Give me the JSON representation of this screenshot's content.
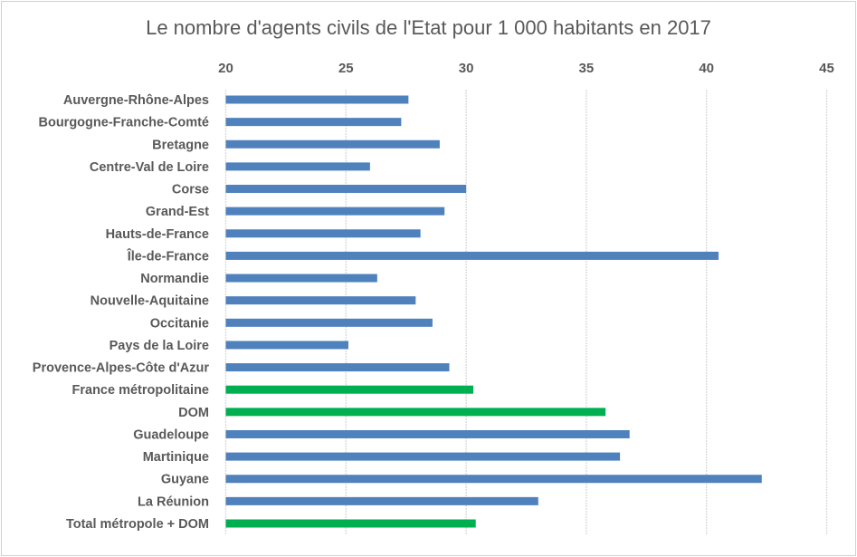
{
  "chart_data": {
    "type": "bar",
    "orientation": "horizontal",
    "title": "Le nombre d'agents civils de l'Etat pour 1 000 habitants en 2017",
    "xlabel": "",
    "ylabel": "",
    "xlim": [
      20,
      45
    ],
    "xticks": [
      "20",
      "25",
      "30",
      "35",
      "40",
      "45"
    ],
    "xtick_values": [
      20,
      25,
      30,
      35,
      40,
      45
    ],
    "axis_position": "top",
    "grid": true,
    "colors": {
      "region": "#4f81bd",
      "aggregate": "#00b050",
      "grid": "#d9d9d9",
      "text": "#595959"
    },
    "categories": [
      "Auvergne-Rhône-Alpes",
      "Bourgogne-Franche-Comté",
      "Bretagne",
      "Centre-Val de Loire",
      "Corse",
      "Grand-Est",
      "Hauts-de-France",
      "Île-de-France",
      "Normandie",
      "Nouvelle-Aquitaine",
      "Occitanie",
      "Pays de la Loire",
      "Provence-Alpes-Côte d'Azur",
      "France métropolitaine",
      "DOM",
      "Guadeloupe",
      "Martinique",
      "Guyane",
      "La Réunion",
      "Total métropole + DOM"
    ],
    "values": [
      27.6,
      27.3,
      28.9,
      26.0,
      30.0,
      29.1,
      28.1,
      40.5,
      26.3,
      27.9,
      28.6,
      25.1,
      29.3,
      30.3,
      35.8,
      36.8,
      36.4,
      42.3,
      33.0,
      30.4
    ],
    "kinds": [
      "region",
      "region",
      "region",
      "region",
      "region",
      "region",
      "region",
      "region",
      "region",
      "region",
      "region",
      "region",
      "region",
      "aggregate",
      "aggregate",
      "region",
      "region",
      "region",
      "region",
      "aggregate"
    ]
  }
}
